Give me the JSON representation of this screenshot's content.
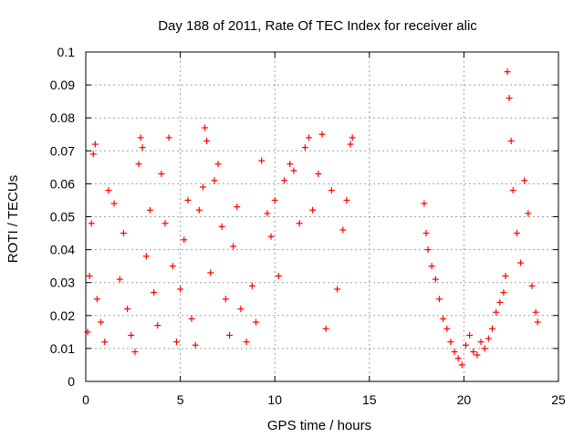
{
  "chart_data": {
    "type": "scatter",
    "title": "Day 188 of 2011, Rate Of TEC Index for receiver alic",
    "xlabel": "GPS time / hours",
    "ylabel": "ROTI / TECUs",
    "xlim": [
      0,
      25
    ],
    "ylim": [
      0,
      0.1
    ],
    "x_ticks": [
      0,
      5,
      10,
      15,
      20,
      25
    ],
    "x_tick_labels": [
      "0",
      "5",
      "10",
      "15",
      "20",
      "25"
    ],
    "y_ticks": [
      0,
      0.01,
      0.02,
      0.03,
      0.04,
      0.05,
      0.06,
      0.07,
      0.08,
      0.09,
      0.1
    ],
    "y_tick_labels": [
      "0",
      "0.01",
      "0.02",
      "0.03",
      "0.04",
      "0.05",
      "0.06",
      "0.07",
      "0.08",
      "0.09",
      "0.1"
    ],
    "grid": true,
    "marker": "+",
    "color": "#ff0000",
    "series": [
      {
        "points": [
          [
            0.1,
            0.015
          ],
          [
            0.2,
            0.032
          ],
          [
            0.3,
            0.048
          ],
          [
            0.4,
            0.069
          ],
          [
            0.5,
            0.072
          ],
          [
            0.6,
            0.025
          ],
          [
            0.8,
            0.018
          ],
          [
            1.0,
            0.012
          ],
          [
            1.2,
            0.058
          ],
          [
            1.5,
            0.054
          ],
          [
            1.8,
            0.031
          ],
          [
            2.0,
            0.045
          ],
          [
            2.2,
            0.022
          ],
          [
            2.4,
            0.014
          ],
          [
            2.6,
            0.009
          ],
          [
            2.8,
            0.066
          ],
          [
            2.9,
            0.074
          ],
          [
            3.0,
            0.071
          ],
          [
            3.2,
            0.038
          ],
          [
            3.4,
            0.052
          ],
          [
            3.6,
            0.027
          ],
          [
            3.8,
            0.017
          ],
          [
            4.0,
            0.063
          ],
          [
            4.2,
            0.048
          ],
          [
            4.4,
            0.074
          ],
          [
            4.6,
            0.035
          ],
          [
            4.8,
            0.012
          ],
          [
            5.0,
            0.028
          ],
          [
            5.2,
            0.043
          ],
          [
            5.4,
            0.055
          ],
          [
            5.6,
            0.019
          ],
          [
            5.8,
            0.011
          ],
          [
            6.0,
            0.052
          ],
          [
            6.2,
            0.059
          ],
          [
            6.3,
            0.077
          ],
          [
            6.4,
            0.073
          ],
          [
            6.6,
            0.033
          ],
          [
            6.8,
            0.061
          ],
          [
            7.0,
            0.066
          ],
          [
            7.2,
            0.047
          ],
          [
            7.4,
            0.025
          ],
          [
            7.6,
            0.014
          ],
          [
            7.8,
            0.041
          ],
          [
            8.0,
            0.053
          ],
          [
            8.2,
            0.022
          ],
          [
            8.5,
            0.012
          ],
          [
            8.8,
            0.029
          ],
          [
            9.0,
            0.018
          ],
          [
            9.3,
            0.067
          ],
          [
            9.6,
            0.051
          ],
          [
            9.8,
            0.044
          ],
          [
            10.0,
            0.055
          ],
          [
            10.2,
            0.032
          ],
          [
            10.5,
            0.061
          ],
          [
            10.8,
            0.066
          ],
          [
            11.0,
            0.064
          ],
          [
            11.3,
            0.048
          ],
          [
            11.6,
            0.071
          ],
          [
            11.8,
            0.074
          ],
          [
            12.0,
            0.052
          ],
          [
            12.3,
            0.063
          ],
          [
            12.5,
            0.075
          ],
          [
            12.7,
            0.016
          ],
          [
            13.0,
            0.058
          ],
          [
            13.3,
            0.028
          ],
          [
            13.6,
            0.046
          ],
          [
            13.8,
            0.055
          ],
          [
            14.0,
            0.072
          ],
          [
            14.1,
            0.074
          ],
          [
            17.9,
            0.054
          ],
          [
            18.0,
            0.045
          ],
          [
            18.1,
            0.04
          ],
          [
            18.3,
            0.035
          ],
          [
            18.5,
            0.031
          ],
          [
            18.7,
            0.025
          ],
          [
            18.9,
            0.019
          ],
          [
            19.1,
            0.016
          ],
          [
            19.3,
            0.012
          ],
          [
            19.5,
            0.009
          ],
          [
            19.7,
            0.007
          ],
          [
            19.9,
            0.005
          ],
          [
            20.1,
            0.011
          ],
          [
            20.3,
            0.014
          ],
          [
            20.5,
            0.009
          ],
          [
            20.7,
            0.008
          ],
          [
            20.9,
            0.012
          ],
          [
            21.1,
            0.01
          ],
          [
            21.3,
            0.013
          ],
          [
            21.5,
            0.016
          ],
          [
            21.7,
            0.021
          ],
          [
            21.9,
            0.024
          ],
          [
            22.1,
            0.027
          ],
          [
            22.2,
            0.032
          ],
          [
            22.3,
            0.094
          ],
          [
            22.4,
            0.086
          ],
          [
            22.5,
            0.073
          ],
          [
            22.6,
            0.058
          ],
          [
            22.8,
            0.045
          ],
          [
            23.0,
            0.036
          ],
          [
            23.2,
            0.061
          ],
          [
            23.4,
            0.051
          ],
          [
            23.6,
            0.029
          ],
          [
            23.8,
            0.021
          ],
          [
            23.9,
            0.018
          ]
        ]
      }
    ]
  }
}
